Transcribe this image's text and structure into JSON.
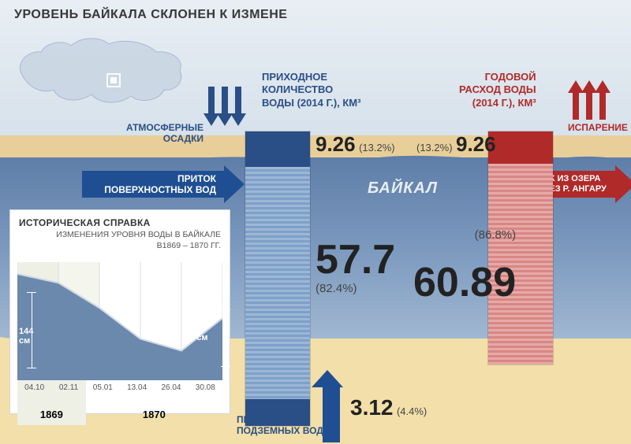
{
  "title": "УРОВЕНЬ БАЙКАЛА СКЛОНЕН К ИЗМЕНЕ",
  "lake_label": "БАЙКАЛ",
  "colors": {
    "blue": "#2a4e86",
    "blue_dark": "#1f4f92",
    "red": "#b02a2a",
    "sand": "#f2dfa9",
    "water_top": "#5e7ea8"
  },
  "inflow": {
    "title_l1": "ПРИХОДНОЕ",
    "title_l2": "КОЛИЧЕСТВО",
    "title_l3": "ВОДЫ (2014 Г.), КМ³",
    "precip_label": "АТМОСФЕРНЫЕ\nОСАДКИ",
    "surface_label": "ПРИТОК\nПОВЕРХНОСТНЫХ ВОД",
    "groundwater_label": "ПРИТОК\nПОДЗЕМНЫХ ВОД",
    "precip": {
      "value": "9.26",
      "pct": "(13.2%)"
    },
    "surface": {
      "value": "57.7",
      "pct": "(82.4%)"
    },
    "ground": {
      "value": "3.12",
      "pct": "(4.4%)"
    }
  },
  "outflow": {
    "title_l1": "ГОДОВОЙ",
    "title_l2": "РАСХОД ВОДЫ",
    "title_l3": "(2014 Г.), КМ³",
    "evap_label": "ИСПАРЕНИЕ",
    "angara_label": "СТОК ИЗ ОЗЕРА\nЧЕРЕЗ Р. АНГАРУ",
    "evap": {
      "value": "9.26",
      "pct": "(13.2%)"
    },
    "angara": {
      "value": "60.89",
      "pct": "(86.8%)"
    }
  },
  "history": {
    "heading": "ИСТОРИЧЕСКАЯ СПРАВКА",
    "sub": "ИЗМЕНЕНИЯ УРОВНЯ ВОДЫ В БАЙКАЛЕ\nВ1869 – 1870 ГГ.",
    "x_ticks": [
      "04.10",
      "02.11",
      "05.01",
      "13.04",
      "26.04",
      "30.08"
    ],
    "years": [
      "1869",
      "1870"
    ],
    "year_split_index": 2,
    "y_values": [
      144,
      132,
      98,
      56,
      40,
      84
    ],
    "y_max": 160,
    "left_measure": "144 см",
    "right_measure": "84 см",
    "fill_color": "#6b88ad",
    "line_color": "#cfd9e6",
    "alt_bg": "#eef0e6"
  }
}
